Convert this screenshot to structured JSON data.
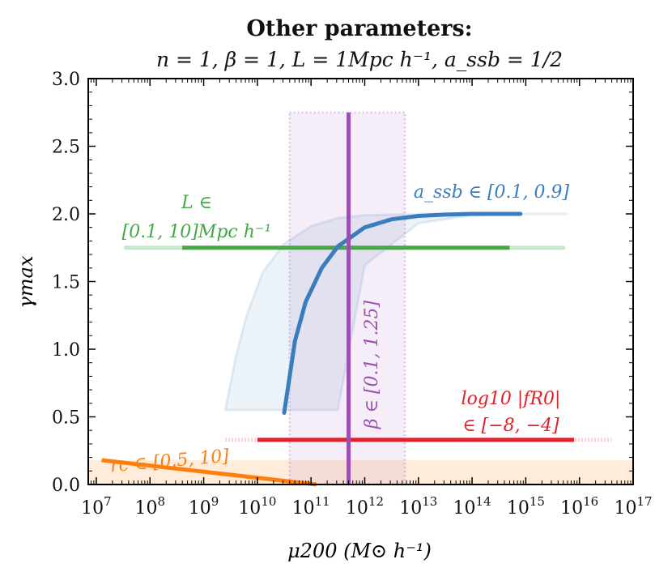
{
  "chart_data": {
    "type": "line",
    "title": "Other parameters:",
    "subtitle": "n = 1, β = 1, L = 1Mpc h⁻¹, a_ssb = 1/2",
    "xlabel": "μ200 (M⊙ h⁻¹)",
    "ylabel": "γmax",
    "xscale": "log10",
    "xlim_log10": [
      6.85,
      17
    ],
    "ylim": [
      0,
      3.0
    ],
    "x_ticks": [
      7,
      8,
      9,
      10,
      11,
      12,
      13,
      14,
      15,
      16,
      17
    ],
    "x_tick_base": "10",
    "y_ticks": [
      "0.0",
      "0.5",
      "1.0",
      "1.5",
      "2.0",
      "2.5",
      "3.0"
    ],
    "colors": {
      "a_ssb": "#3a7dbd",
      "L": "#45a845",
      "beta": "#9b4fb0",
      "fR0": "#e0202a",
      "rc": "#ff7f0e"
    },
    "series": [
      {
        "name": "a_ssb",
        "label": "a_ssb ∈ [0.1, 0.9]",
        "x_log10": [
          10.5,
          10.7,
          10.9,
          11.2,
          11.5,
          12.0,
          12.5,
          13.0,
          13.5,
          14.0,
          14.5,
          14.9
        ],
        "y": [
          0.53,
          1.06,
          1.35,
          1.6,
          1.76,
          1.9,
          1.96,
          1.985,
          1.995,
          2.0,
          2.0,
          2.0
        ],
        "band_x_log10": [
          9.4,
          9.6,
          9.8,
          10.1,
          10.5,
          11.0,
          11.5,
          12.0,
          13.0,
          14.0,
          15.0,
          15.8
        ],
        "band_lower": [
          0.55,
          0.55,
          0.55,
          0.55,
          0.55,
          0.55,
          0.55,
          1.62,
          1.93,
          1.99,
          2.0,
          2.0
        ],
        "band_upper": [
          0.55,
          0.95,
          1.25,
          1.57,
          1.78,
          1.91,
          1.97,
          1.99,
          2.0,
          2.0,
          2.0,
          2.0
        ]
      },
      {
        "name": "L",
        "label_line1": "L ∈",
        "label_line2": "[0.1, 10]Mpc h⁻¹",
        "x_log10": [
          8.6,
          14.7
        ],
        "y": [
          1.75,
          1.75
        ],
        "faded_x_log10": [
          7.55,
          15.7
        ]
      },
      {
        "name": "beta",
        "label": "β ∈ [0.1, 1.25]",
        "x_log10": 11.7,
        "band_x_log10": [
          10.6,
          12.75
        ],
        "band_ylim": [
          0,
          2.75
        ]
      },
      {
        "name": "fR0",
        "label_line1": "log10 |fR0|",
        "label_line2": "∈ [−8, −4]",
        "x_log10": [
          10.0,
          15.9
        ],
        "y": [
          0.33,
          0.33
        ],
        "faded_x_log10": [
          9.4,
          16.6
        ]
      },
      {
        "name": "rc",
        "label": "rc ∈ [0.5, 10]",
        "x_log10": [
          7.1,
          11.1
        ],
        "y": [
          0.18,
          0.0
        ],
        "band_ylim": [
          0,
          0.18
        ]
      }
    ]
  }
}
